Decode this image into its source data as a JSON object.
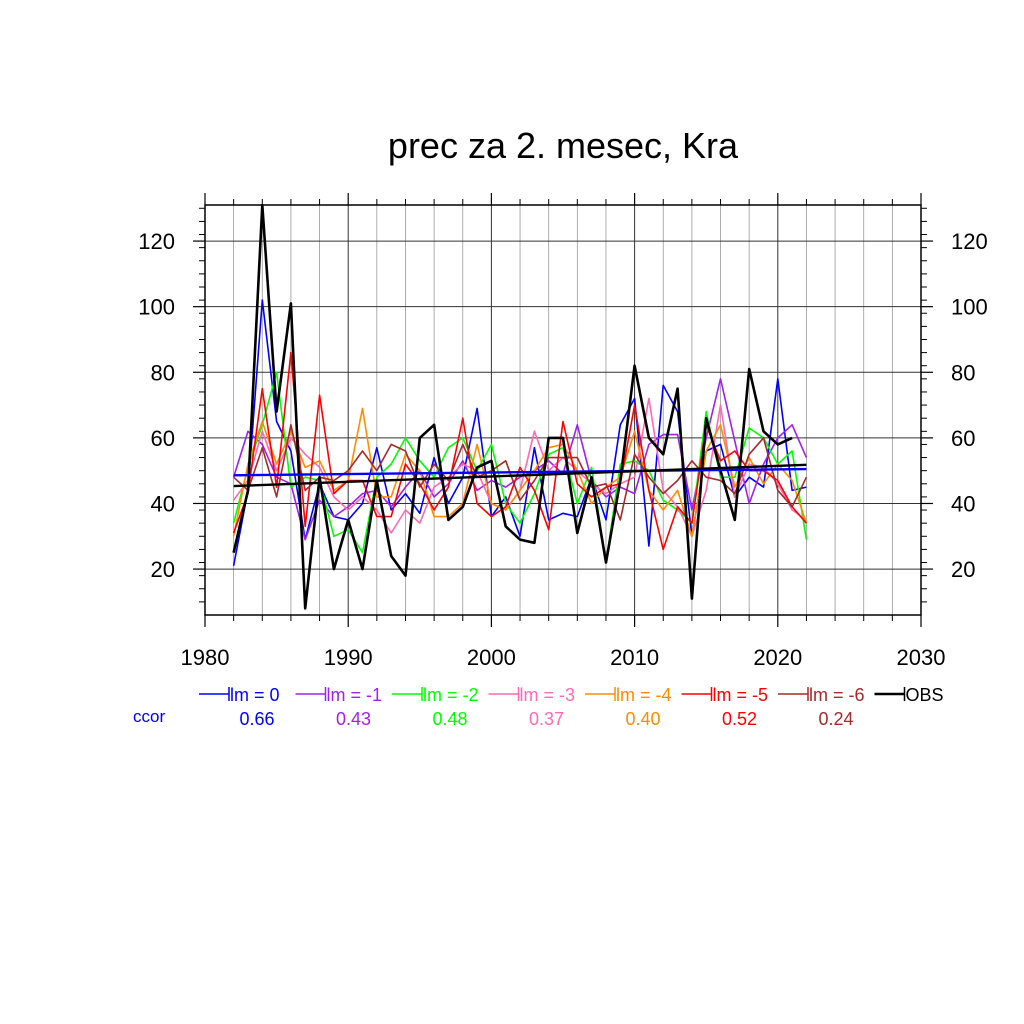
{
  "chart_data": {
    "type": "line",
    "title": "prec za 2. mesec, Kra",
    "xlabel": "",
    "ylabel": "",
    "xlim": [
      1980,
      2030
    ],
    "ylim": [
      6,
      131
    ],
    "x_ticks": [
      1980,
      1990,
      2000,
      2010,
      2020,
      2030
    ],
    "y_ticks": [
      20,
      40,
      60,
      80,
      100,
      120
    ],
    "grid": true,
    "legend_position": "bottom",
    "ccor_label": "ccor",
    "x": [
      1982,
      1983,
      1984,
      1985,
      1986,
      1987,
      1988,
      1989,
      1990,
      1991,
      1992,
      1993,
      1994,
      1995,
      1996,
      1997,
      1998,
      1999,
      2000,
      2001,
      2002,
      2003,
      2004,
      2005,
      2006,
      2007,
      2008,
      2009,
      2010,
      2011,
      2012,
      2013,
      2014,
      2015,
      2016,
      2017,
      2018,
      2019,
      2020,
      2021,
      2022
    ],
    "series": [
      {
        "name": "lm = 0",
        "color": "#0000ff",
        "width": 1.6,
        "ccor": "0.66",
        "values": [
          21,
          44,
          102,
          65,
          56,
          29,
          46,
          36,
          35,
          40,
          57,
          38,
          43,
          37,
          54,
          40,
          48,
          69,
          36,
          42,
          30,
          57,
          35,
          37,
          36,
          48,
          35,
          64,
          72,
          27,
          76,
          68,
          30,
          56,
          58,
          42,
          48,
          45,
          78,
          44,
          45
        ]
      },
      {
        "name": "lm = -1",
        "color": "#a020f0",
        "width": 1.6,
        "ccor": "0.43",
        "values": [
          48,
          62,
          58,
          48,
          46,
          29,
          41,
          36,
          39,
          43,
          44,
          39,
          45,
          50,
          42,
          46,
          53,
          44,
          47,
          45,
          48,
          50,
          53,
          49,
          64,
          47,
          42,
          45,
          43,
          58,
          61,
          61,
          38,
          60,
          78,
          59,
          40,
          52,
          60,
          64,
          54
        ]
      },
      {
        "name": "lm = -2",
        "color": "#00ff00",
        "width": 1.6,
        "ccor": "0.48",
        "values": [
          34,
          51,
          64,
          80,
          45,
          48,
          47,
          30,
          32,
          25,
          48,
          52,
          60,
          53,
          48,
          57,
          60,
          50,
          58,
          40,
          34,
          43,
          55,
          57,
          40,
          51,
          22,
          52,
          53,
          50,
          41,
          38,
          34,
          68,
          48,
          48,
          63,
          60,
          52,
          56,
          29
        ]
      },
      {
        "name": "lm = -3",
        "color": "#ff69b4",
        "width": 1.6,
        "ccor": "0.37",
        "values": [
          41,
          47,
          62,
          50,
          60,
          55,
          51,
          42,
          38,
          42,
          38,
          31,
          38,
          34,
          45,
          48,
          52,
          50,
          40,
          38,
          44,
          62,
          50,
          54,
          50,
          46,
          43,
          46,
          48,
          72,
          44,
          39,
          30,
          44,
          70,
          42,
          52,
          51,
          46,
          38,
          35
        ]
      },
      {
        "name": "lm = -4",
        "color": "#ff8c00",
        "width": 1.6,
        "ccor": "0.40",
        "values": [
          30,
          52,
          65,
          52,
          62,
          51,
          53,
          44,
          47,
          69,
          42,
          42,
          55,
          50,
          36,
          36,
          40,
          58,
          40,
          38,
          44,
          50,
          57,
          58,
          50,
          40,
          45,
          48,
          62,
          44,
          38,
          44,
          30,
          56,
          64,
          45,
          54,
          46,
          52,
          47,
          34
        ]
      },
      {
        "name": "lm = -5",
        "color": "#ff0000",
        "width": 1.6,
        "ccor": "0.52",
        "values": [
          31,
          43,
          75,
          45,
          86,
          33,
          73,
          43,
          47,
          47,
          36,
          36,
          52,
          46,
          38,
          45,
          66,
          40,
          36,
          39,
          51,
          44,
          32,
          65,
          46,
          42,
          45,
          46,
          70,
          44,
          26,
          39,
          34,
          64,
          53,
          56,
          50,
          50,
          47,
          39,
          34
        ]
      },
      {
        "name": "lm = -6",
        "color": "#a52a2a",
        "width": 1.6,
        "ccor": "0.24",
        "values": [
          48,
          44,
          57,
          42,
          64,
          44,
          48,
          47,
          50,
          56,
          50,
          58,
          56,
          45,
          52,
          47,
          58,
          48,
          50,
          53,
          41,
          47,
          54,
          54,
          54,
          45,
          46,
          35,
          55,
          48,
          43,
          47,
          53,
          48,
          47,
          43,
          55,
          60,
          44,
          39,
          48
        ]
      },
      {
        "name": "OBS",
        "color": "#000000",
        "width": 2.6,
        "ccor": "",
        "values": [
          25,
          44,
          131,
          68,
          101,
          8,
          48,
          20,
          35,
          20,
          47,
          24,
          18,
          60,
          64,
          35,
          39,
          51,
          53,
          33,
          29,
          28,
          60,
          60,
          31,
          48,
          22,
          47,
          82,
          60,
          55,
          75,
          11,
          66,
          50,
          35,
          81,
          62,
          58,
          60,
          null
        ]
      }
    ],
    "trend": {
      "color": "#000000",
      "x": [
        1982,
        2022
      ],
      "values": [
        45.3,
        51.8
      ]
    },
    "trend2": {
      "color": "#0000ff",
      "x": [
        1982,
        2022
      ],
      "values": [
        48.6,
        50.5
      ]
    }
  }
}
